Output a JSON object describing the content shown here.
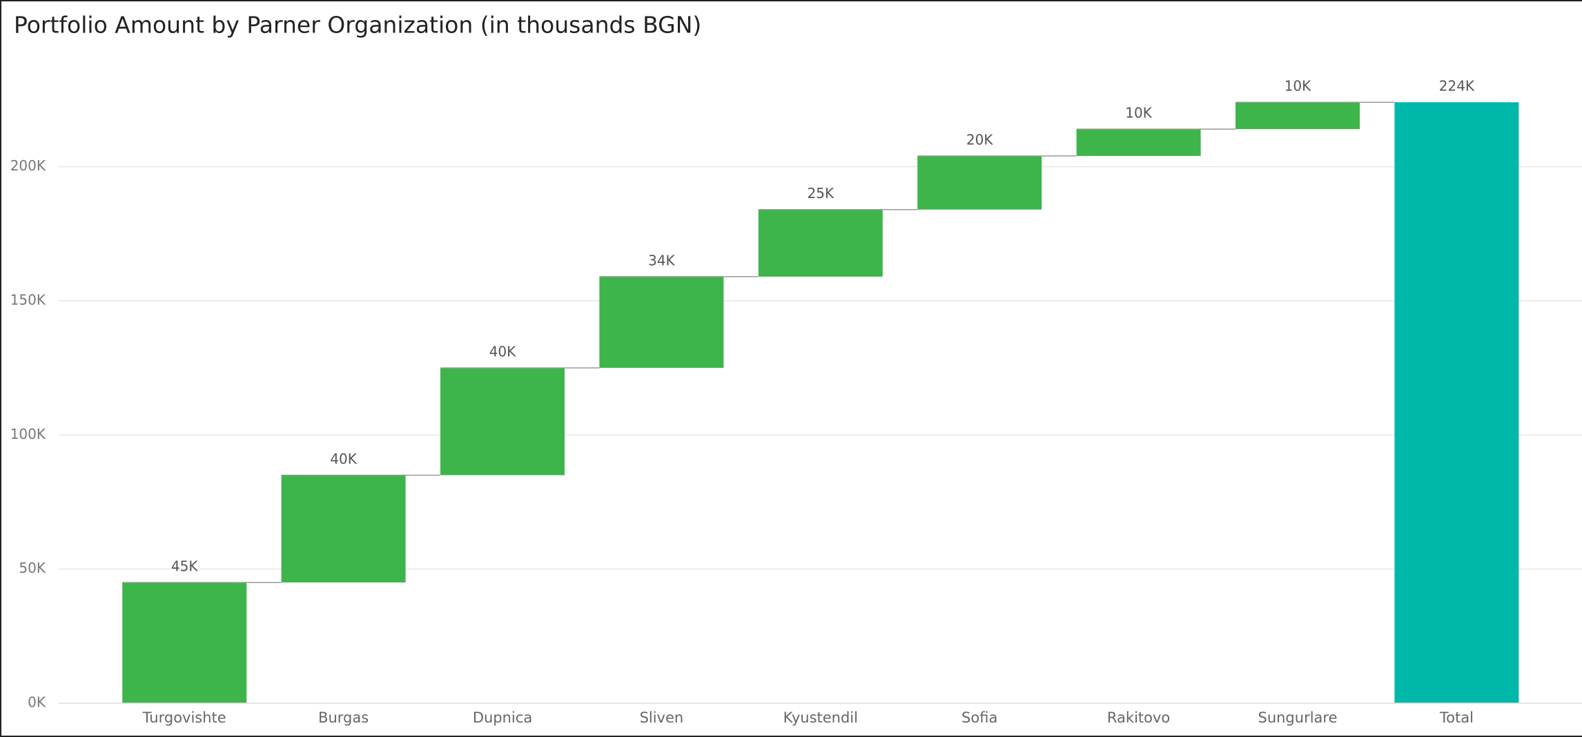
{
  "chart_data": {
    "type": "waterfall",
    "title": "Portfolio Amount by Parner Organization (in thousands BGN)",
    "categories": [
      "Turgovishte",
      "Burgas",
      "Dupnica",
      "Sliven",
      "Kyustendil",
      "Sofia",
      "Rakitovo",
      "Sungurlare",
      "Total"
    ],
    "values": [
      45000,
      40000,
      40000,
      34000,
      25000,
      20000,
      10000,
      10000,
      224000
    ],
    "value_labels": [
      "45K",
      "40K",
      "40K",
      "34K",
      "25K",
      "20K",
      "10K",
      "10K",
      "224K"
    ],
    "increase_color": "#3db54a",
    "total_color": "#00b8aa",
    "ylim": [
      0,
      240000
    ],
    "yticks": [
      {
        "value": 0,
        "label": "0K"
      },
      {
        "value": 50000,
        "label": "50K"
      },
      {
        "value": 100000,
        "label": "100K"
      },
      {
        "value": 150000,
        "label": "150K"
      },
      {
        "value": 200000,
        "label": "200K"
      }
    ],
    "grid": true
  }
}
